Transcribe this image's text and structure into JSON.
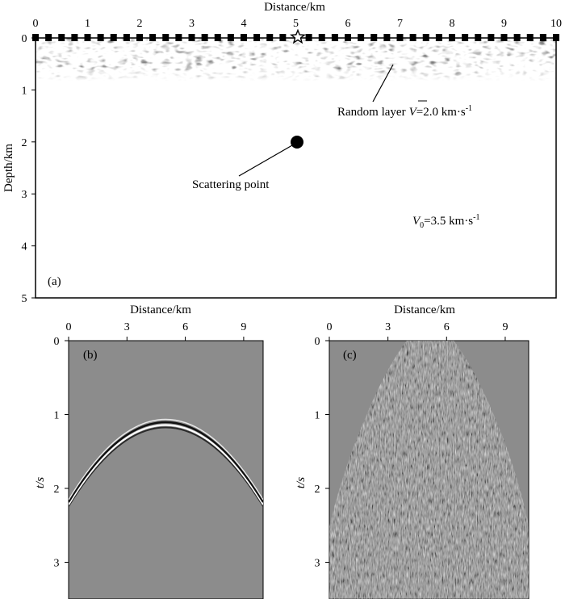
{
  "panel_a": {
    "xlabel": "Distance/km",
    "ylabel": "Depth/km",
    "xticks": [
      "0",
      "1",
      "2",
      "3",
      "4",
      "5",
      "6",
      "7",
      "8",
      "9",
      "10"
    ],
    "yticks": [
      "0",
      "1",
      "2",
      "3",
      "4",
      "5"
    ],
    "panel_label": "(a)",
    "random_layer_label": "Random layer",
    "random_layer_symbol": "V",
    "random_layer_value": "=2.0 km·s",
    "random_layer_exp": "-1",
    "scatter_label": "Scattering point",
    "v0_symbol": "V",
    "v0_sub": "0",
    "v0_value": "=3.5 km·s",
    "v0_exp": "-1",
    "source_x_km": 5,
    "scatter_x_km": 5,
    "scatter_depth_km": 2,
    "random_layer_bottom_km": 0.75
  },
  "panel_b": {
    "xlabel": "Distance/km",
    "ylabel": "t/s",
    "xticks": [
      "0",
      "3",
      "6",
      "9"
    ],
    "yticks": [
      "0",
      "1",
      "2",
      "3"
    ],
    "panel_label": "(b)"
  },
  "panel_c": {
    "xlabel": "Distance/km",
    "ylabel": "t/s",
    "xticks": [
      "0",
      "3",
      "6",
      "9"
    ],
    "yticks": [
      "0",
      "1",
      "2",
      "3"
    ],
    "panel_label": "(c)"
  },
  "colors": {
    "seismic_background": "#8c8c8c",
    "marker": "#000000"
  }
}
